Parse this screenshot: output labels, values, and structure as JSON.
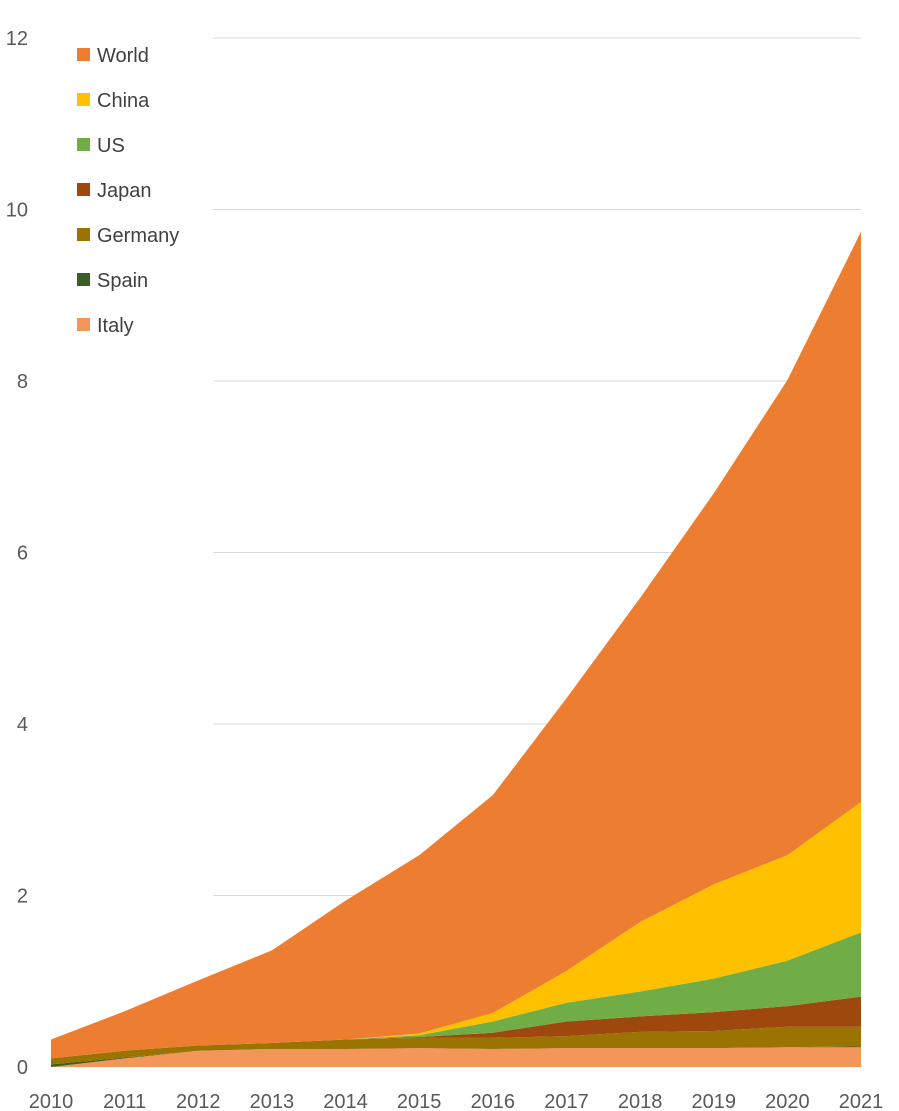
{
  "chart_data": {
    "type": "area",
    "stacked": true,
    "categories": [
      "2010",
      "2011",
      "2012",
      "2013",
      "2014",
      "2015",
      "2016",
      "2017",
      "2018",
      "2019",
      "2020",
      "2021"
    ],
    "ylim": [
      0,
      12
    ],
    "yticks": [
      0,
      2,
      4,
      6,
      8,
      10,
      12
    ],
    "grid": true,
    "legend_placement": "top-left",
    "series": [
      {
        "name": "Italy",
        "color": "#F4955A",
        "values": [
          0.0,
          0.1,
          0.19,
          0.21,
          0.21,
          0.22,
          0.21,
          0.22,
          0.22,
          0.22,
          0.23,
          0.23
        ]
      },
      {
        "name": "Spain",
        "color": "#3A5E25",
        "values": [
          0.03,
          0.01,
          0.0,
          0.0,
          0.0,
          0.0,
          0.0,
          0.0,
          0.0,
          0.0,
          0.0,
          0.01
        ]
      },
      {
        "name": "Germany",
        "color": "#9A7300",
        "values": [
          0.07,
          0.08,
          0.06,
          0.07,
          0.11,
          0.12,
          0.13,
          0.14,
          0.19,
          0.2,
          0.24,
          0.23
        ]
      },
      {
        "name": "Japan",
        "color": "#9E480E",
        "values": [
          0.0,
          0.0,
          0.0,
          0.0,
          0.0,
          0.01,
          0.06,
          0.17,
          0.18,
          0.22,
          0.24,
          0.35
        ]
      },
      {
        "name": "US",
        "color": "#70AD47",
        "values": [
          0.0,
          0.0,
          0.0,
          0.0,
          0.0,
          0.02,
          0.13,
          0.22,
          0.29,
          0.39,
          0.53,
          0.75
        ]
      },
      {
        "name": "China",
        "color": "#FFC000",
        "values": [
          0.0,
          0.0,
          0.0,
          0.0,
          0.0,
          0.02,
          0.1,
          0.37,
          0.81,
          1.1,
          1.23,
          1.52
        ]
      },
      {
        "name": "World",
        "color": "#ED7D31",
        "values": [
          0.22,
          0.46,
          0.76,
          1.08,
          1.62,
          2.08,
          2.54,
          3.18,
          3.78,
          4.56,
          5.54,
          6.65
        ]
      }
    ],
    "legend_order": [
      "World",
      "China",
      "US",
      "Japan",
      "Germany",
      "Spain",
      "Italy"
    ]
  }
}
